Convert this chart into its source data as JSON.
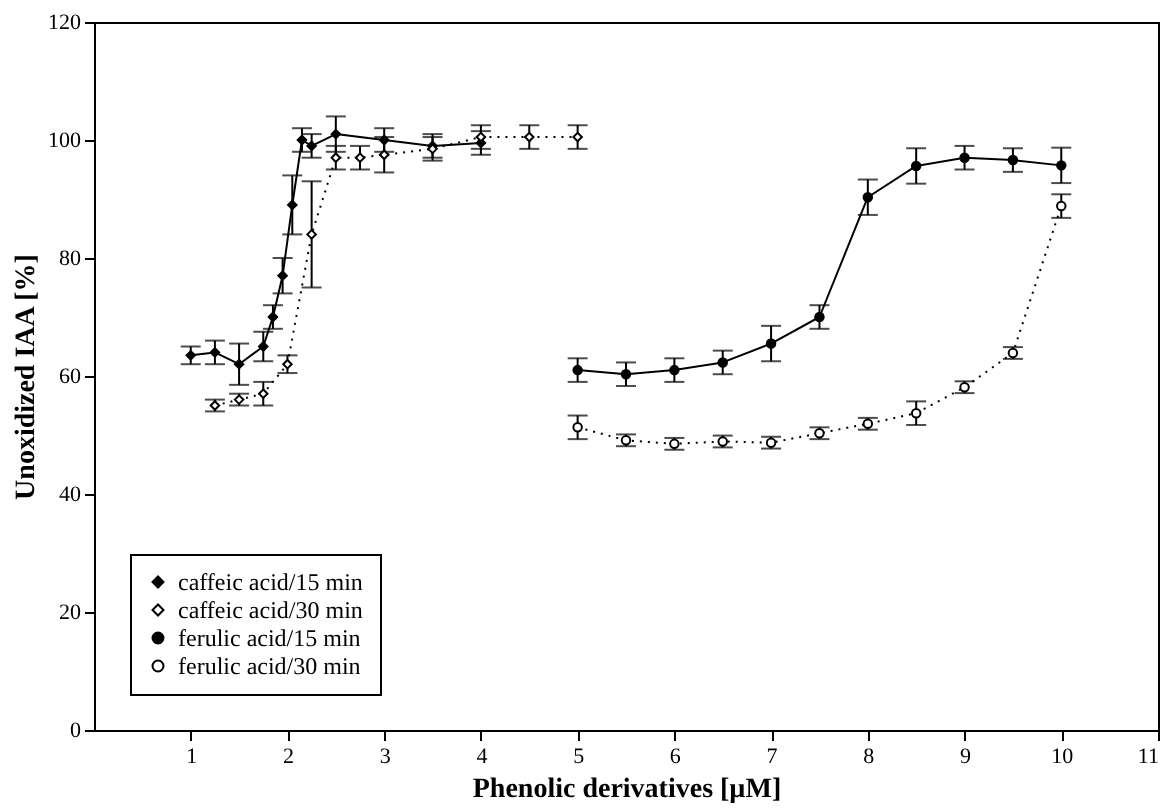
{
  "chart_data": {
    "type": "line",
    "xlabel": "Phenolic derivatives [µM]",
    "ylabel": "Unoxidized IAA [%]",
    "xlim": [
      0,
      11
    ],
    "xticks": [
      1,
      2,
      3,
      4,
      5,
      6,
      7,
      8,
      9,
      10,
      11
    ],
    "ylim": [
      0,
      120
    ],
    "yticks": [
      0,
      20,
      40,
      60,
      80,
      100,
      120
    ],
    "grid": false,
    "legend": "bottom left",
    "series": [
      {
        "name": "caffeic acid/15 min",
        "color": "#000000",
        "marker": "diamond",
        "line_style": "solid",
        "x": [
          1,
          1.25,
          1.5,
          1.75,
          1.85,
          1.95,
          2.05,
          2.15,
          2.25,
          2.5,
          3,
          3.5,
          4
        ],
        "values": [
          63.5,
          64,
          62,
          65,
          70,
          77,
          89,
          100,
          99,
          101,
          100,
          99,
          99.5
        ],
        "errors": [
          1.5,
          2,
          3.5,
          2.5,
          2,
          3,
          5,
          2,
          2,
          3,
          2,
          2,
          2
        ]
      },
      {
        "name": "caffeic acid/30 min",
        "color": "#000000",
        "marker": "diamond",
        "line_style": "dotted",
        "x": [
          1.25,
          1.5,
          1.75,
          2,
          2.25,
          2.5,
          2.75,
          3,
          3.5,
          4,
          4.5,
          5
        ],
        "values": [
          55,
          56,
          57,
          62,
          84,
          97,
          97,
          97.5,
          98.5,
          100.5,
          100.5,
          100.5
        ],
        "errors": [
          1,
          1,
          2,
          1.5,
          9,
          2,
          2,
          3,
          2,
          2,
          2,
          2
        ]
      },
      {
        "name": "ferulic acid/15 min",
        "color": "#000000",
        "marker": "circle",
        "line_style": "solid",
        "x": [
          5,
          5.5,
          6,
          6.5,
          7,
          7.5,
          8,
          8.5,
          9,
          9.5,
          10
        ],
        "values": [
          61,
          60.3,
          61,
          62.3,
          65.5,
          70,
          90.3,
          95.6,
          97,
          96.6,
          95.7
        ],
        "errors": [
          2,
          2,
          2,
          2,
          3,
          2,
          3,
          3,
          2,
          2,
          3
        ]
      },
      {
        "name": "ferulic acid/30 min",
        "color": "#000000",
        "marker": "circle",
        "line_style": "dotted",
        "x": [
          5,
          5.5,
          6,
          6.5,
          7,
          7.5,
          8,
          8.5,
          9,
          9.5,
          10
        ],
        "values": [
          51.3,
          49.1,
          48.5,
          48.9,
          48.7,
          50.3,
          51.9,
          53.7,
          58.1,
          63.9,
          88.8
        ],
        "errors": [
          2,
          1,
          1,
          1,
          1,
          1,
          1,
          2,
          1,
          1,
          2
        ]
      }
    ]
  }
}
